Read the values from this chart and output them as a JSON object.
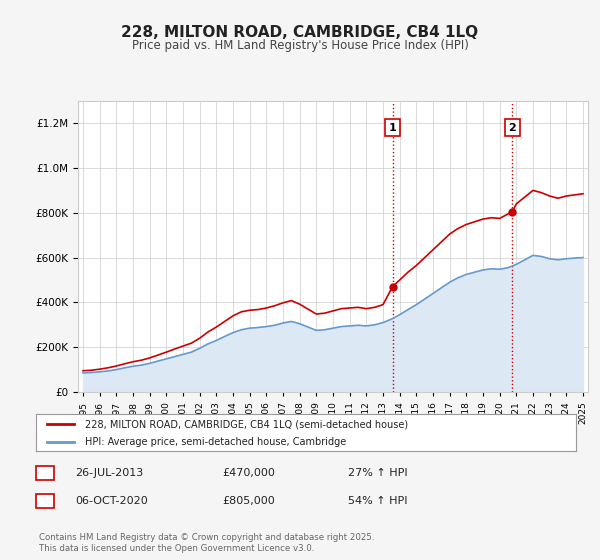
{
  "title": "228, MILTON ROAD, CAMBRIDGE, CB4 1LQ",
  "subtitle": "Price paid vs. HM Land Registry's House Price Index (HPI)",
  "legend_line1": "228, MILTON ROAD, CAMBRIDGE, CB4 1LQ (semi-detached house)",
  "legend_line2": "HPI: Average price, semi-detached house, Cambridge",
  "annotation1_label": "1",
  "annotation1_date": "26-JUL-2013",
  "annotation1_price": "£470,000",
  "annotation1_hpi": "27% ↑ HPI",
  "annotation2_label": "2",
  "annotation2_date": "06-OCT-2020",
  "annotation2_price": "£805,000",
  "annotation2_hpi": "54% ↑ HPI",
  "footer": "Contains HM Land Registry data © Crown copyright and database right 2025.\nThis data is licensed under the Open Government Licence v3.0.",
  "red_color": "#cc0000",
  "blue_color": "#6699cc",
  "fill_color": "#dde8f5",
  "annotation_vline_color": "#cc0000",
  "annotation_vline_style": "dotted",
  "background_color": "#f5f5f5",
  "chart_bg_color": "#ffffff",
  "ylim_min": 0,
  "ylim_max": 1300000,
  "year_start": 1995,
  "year_end": 2025,
  "purchase1_year": 2013.57,
  "purchase1_price": 470000,
  "purchase2_year": 2020.76,
  "purchase2_price": 805000,
  "hpi_years": [
    1995,
    1995.5,
    1996,
    1996.5,
    1997,
    1997.5,
    1998,
    1998.5,
    1999,
    1999.5,
    2000,
    2000.5,
    2001,
    2001.5,
    2002,
    2002.5,
    2003,
    2003.5,
    2004,
    2004.5,
    2005,
    2005.5,
    2006,
    2006.5,
    2007,
    2007.5,
    2008,
    2008.5,
    2009,
    2009.5,
    2010,
    2010.5,
    2011,
    2011.5,
    2012,
    2012.5,
    2013,
    2013.5,
    2014,
    2014.5,
    2015,
    2015.5,
    2016,
    2016.5,
    2017,
    2017.5,
    2018,
    2018.5,
    2019,
    2019.5,
    2020,
    2020.5,
    2021,
    2021.5,
    2022,
    2022.5,
    2023,
    2023.5,
    2024,
    2024.5,
    2025
  ],
  "hpi_values": [
    85000,
    87000,
    90000,
    94000,
    100000,
    108000,
    115000,
    120000,
    128000,
    138000,
    148000,
    158000,
    168000,
    178000,
    195000,
    215000,
    230000,
    248000,
    265000,
    278000,
    285000,
    288000,
    292000,
    298000,
    308000,
    315000,
    305000,
    290000,
    275000,
    278000,
    285000,
    292000,
    295000,
    298000,
    295000,
    300000,
    310000,
    325000,
    345000,
    368000,
    390000,
    415000,
    440000,
    465000,
    490000,
    510000,
    525000,
    535000,
    545000,
    550000,
    548000,
    555000,
    570000,
    590000,
    610000,
    605000,
    595000,
    590000,
    595000,
    598000,
    600000
  ],
  "red_years": [
    1995,
    1995.5,
    1996,
    1996.5,
    1997,
    1997.5,
    1998,
    1998.5,
    1999,
    1999.5,
    2000,
    2000.5,
    2001,
    2001.5,
    2002,
    2002.5,
    2003,
    2003.5,
    2004,
    2004.5,
    2005,
    2005.5,
    2006,
    2006.5,
    2007,
    2007.5,
    2008,
    2008.5,
    2009,
    2009.5,
    2010,
    2010.5,
    2011,
    2011.5,
    2012,
    2012.5,
    2013,
    2013.57,
    2014,
    2014.5,
    2015,
    2015.5,
    2016,
    2016.5,
    2017,
    2017.5,
    2018,
    2018.5,
    2019,
    2019.5,
    2020,
    2020.76,
    2021,
    2021.5,
    2022,
    2022.5,
    2023,
    2023.5,
    2024,
    2024.5,
    2025
  ],
  "red_values": [
    95000,
    97000,
    102000,
    108000,
    116000,
    126000,
    135000,
    142000,
    152000,
    165000,
    178000,
    192000,
    205000,
    218000,
    240000,
    268000,
    290000,
    315000,
    340000,
    358000,
    365000,
    368000,
    375000,
    385000,
    398000,
    408000,
    392000,
    370000,
    348000,
    352000,
    362000,
    372000,
    375000,
    378000,
    372000,
    378000,
    390000,
    470000,
    500000,
    535000,
    565000,
    600000,
    635000,
    670000,
    705000,
    730000,
    748000,
    760000,
    772000,
    778000,
    775000,
    805000,
    840000,
    870000,
    900000,
    890000,
    875000,
    865000,
    875000,
    880000,
    885000
  ]
}
